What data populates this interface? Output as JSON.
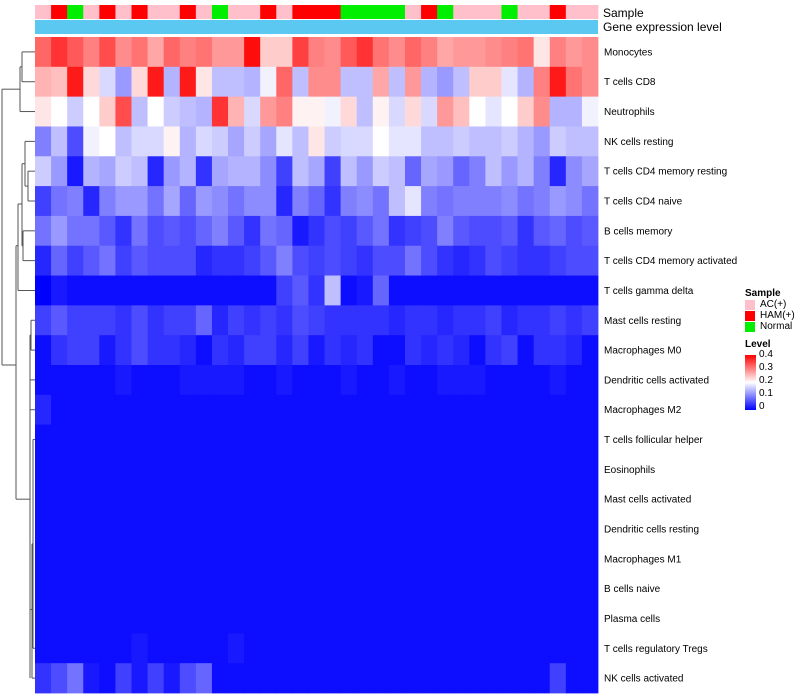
{
  "chart_data": {
    "type": "heatmap",
    "annotation_rows": [
      "Sample",
      "Gene expression level"
    ],
    "sample_groups": [
      {
        "name": "AC(+)",
        "color": "#ffc0cb"
      },
      {
        "name": "HAM(+)",
        "color": "#ff0000"
      },
      {
        "name": "Normal",
        "color": "#00ee00"
      }
    ],
    "sample_annotation": [
      "AC(+)",
      "HAM(+)",
      "Normal",
      "AC(+)",
      "HAM(+)",
      "AC(+)",
      "HAM(+)",
      "AC(+)",
      "AC(+)",
      "HAM(+)",
      "AC(+)",
      "Normal",
      "AC(+)",
      "AC(+)",
      "HAM(+)",
      "AC(+)",
      "HAM(+)",
      "HAM(+)",
      "HAM(+)",
      "Normal",
      "Normal",
      "Normal",
      "Normal",
      "AC(+)",
      "HAM(+)",
      "Normal",
      "AC(+)",
      "AC(+)",
      "AC(+)",
      "Normal",
      "AC(+)",
      "AC(+)",
      "HAM(+)",
      "AC(+)",
      "AC(+)"
    ],
    "expression_level_color": "#5ac8f0",
    "rows": [
      "Monocytes",
      "T cells CD8",
      "Neutrophils",
      "NK cells resting",
      "T cells CD4 memory resting",
      "T cells CD4 naive",
      "B cells memory",
      "T cells CD4 memory activated",
      "T cells gamma delta",
      "Mast cells resting",
      "Macrophages M0",
      "Dendritic cells activated",
      "Macrophages M2",
      "T cells follicular helper",
      "Eosinophils",
      "Mast cells activated",
      "Dendritic cells resting",
      "Macrophages M1",
      "B cells naive",
      "Plasma cells",
      "T cells regulatory  Tregs",
      "NK cells activated"
    ],
    "values": [
      [
        0.32,
        0.36,
        0.33,
        0.3,
        0.34,
        0.29,
        0.31,
        0.27,
        0.32,
        0.3,
        0.31,
        0.28,
        0.28,
        0.39,
        0.24,
        0.24,
        0.35,
        0.3,
        0.29,
        0.33,
        0.36,
        0.31,
        0.29,
        0.32,
        0.3,
        0.27,
        0.28,
        0.28,
        0.29,
        0.3,
        0.31,
        0.22,
        0.3,
        0.28,
        0.29
      ],
      [
        0.26,
        0.25,
        0.38,
        0.23,
        0.17,
        0.12,
        0.23,
        0.38,
        0.14,
        0.38,
        0.22,
        0.15,
        0.15,
        0.14,
        0.19,
        0.32,
        0.15,
        0.29,
        0.29,
        0.15,
        0.15,
        0.27,
        0.15,
        0.28,
        0.14,
        0.12,
        0.15,
        0.24,
        0.24,
        0.18,
        0.14,
        0.3,
        0.38,
        0.31,
        0.29
      ],
      [
        0.22,
        0.2,
        0.16,
        0.2,
        0.24,
        0.34,
        0.15,
        0.2,
        0.16,
        0.15,
        0.14,
        0.36,
        0.26,
        0.17,
        0.28,
        0.3,
        0.21,
        0.21,
        0.19,
        0.23,
        0.15,
        0.21,
        0.17,
        0.23,
        0.17,
        0.28,
        0.25,
        0.2,
        0.18,
        0.2,
        0.24,
        0.29,
        0.14,
        0.14,
        0.19
      ],
      [
        0.1,
        0.15,
        0.06,
        0.19,
        0.2,
        0.15,
        0.17,
        0.17,
        0.21,
        0.14,
        0.17,
        0.16,
        0.13,
        0.16,
        0.13,
        0.18,
        0.15,
        0.22,
        0.16,
        0.17,
        0.17,
        0.2,
        0.18,
        0.18,
        0.15,
        0.15,
        0.16,
        0.15,
        0.15,
        0.16,
        0.14,
        0.12,
        0.16,
        0.15,
        0.15
      ],
      [
        0.16,
        0.12,
        0.02,
        0.14,
        0.13,
        0.16,
        0.15,
        0.03,
        0.12,
        0.14,
        0.04,
        0.13,
        0.14,
        0.14,
        0.11,
        0.05,
        0.15,
        0.13,
        0.05,
        0.15,
        0.12,
        0.16,
        0.15,
        0.08,
        0.13,
        0.12,
        0.08,
        0.1,
        0.15,
        0.12,
        0.14,
        0.1,
        0.03,
        0.11,
        0.13
      ],
      [
        0.05,
        0.09,
        0.1,
        0.03,
        0.1,
        0.12,
        0.12,
        0.09,
        0.13,
        0.08,
        0.12,
        0.11,
        0.09,
        0.11,
        0.11,
        0.03,
        0.1,
        0.08,
        0.04,
        0.1,
        0.11,
        0.09,
        0.15,
        0.18,
        0.1,
        0.09,
        0.1,
        0.1,
        0.1,
        0.11,
        0.09,
        0.1,
        0.12,
        0.11,
        0.09
      ],
      [
        0.09,
        0.12,
        0.09,
        0.09,
        0.07,
        0.04,
        0.09,
        0.06,
        0.07,
        0.06,
        0.08,
        0.1,
        0.07,
        0.04,
        0.09,
        0.08,
        0.02,
        0.04,
        0.06,
        0.05,
        0.07,
        0.09,
        0.04,
        0.05,
        0.06,
        0.1,
        0.07,
        0.06,
        0.06,
        0.07,
        0.04,
        0.07,
        0.08,
        0.06,
        0.07
      ],
      [
        0.03,
        0.08,
        0.05,
        0.07,
        0.09,
        0.05,
        0.07,
        0.06,
        0.06,
        0.06,
        0.03,
        0.04,
        0.04,
        0.05,
        0.07,
        0.1,
        0.06,
        0.05,
        0.06,
        0.05,
        0.04,
        0.06,
        0.06,
        0.09,
        0.06,
        0.04,
        0.03,
        0.04,
        0.06,
        0.05,
        0.04,
        0.04,
        0.05,
        0.06,
        0.06
      ],
      [
        0.0,
        0.02,
        0.01,
        0.01,
        0.01,
        0.01,
        0.01,
        0.01,
        0.01,
        0.01,
        0.01,
        0.01,
        0.01,
        0.01,
        0.01,
        0.05,
        0.07,
        0.04,
        0.15,
        0.01,
        0.02,
        0.08,
        0.01,
        0.01,
        0.01,
        0.01,
        0.01,
        0.01,
        0.01,
        0.01,
        0.01,
        0.01,
        0.01,
        0.01,
        0.01
      ],
      [
        0.05,
        0.07,
        0.05,
        0.05,
        0.05,
        0.04,
        0.06,
        0.04,
        0.05,
        0.05,
        0.08,
        0.03,
        0.05,
        0.04,
        0.05,
        0.04,
        0.06,
        0.05,
        0.04,
        0.04,
        0.04,
        0.04,
        0.03,
        0.04,
        0.04,
        0.03,
        0.04,
        0.04,
        0.05,
        0.03,
        0.04,
        0.04,
        0.05,
        0.04,
        0.05
      ],
      [
        0.01,
        0.04,
        0.05,
        0.05,
        0.02,
        0.04,
        0.06,
        0.04,
        0.04,
        0.03,
        0.01,
        0.04,
        0.03,
        0.05,
        0.05,
        0.03,
        0.05,
        0.02,
        0.04,
        0.03,
        0.04,
        0.01,
        0.01,
        0.04,
        0.03,
        0.04,
        0.03,
        0.01,
        0.04,
        0.05,
        0.01,
        0.04,
        0.04,
        0.03,
        0.01
      ],
      [
        0.01,
        0.01,
        0.01,
        0.01,
        0.01,
        0.02,
        0.01,
        0.01,
        0.01,
        0.02,
        0.02,
        0.02,
        0.02,
        0.01,
        0.01,
        0.02,
        0.01,
        0.01,
        0.01,
        0.02,
        0.01,
        0.01,
        0.02,
        0.01,
        0.01,
        0.02,
        0.02,
        0.02,
        0.01,
        0.01,
        0.01,
        0.01,
        0.02,
        0.01,
        0.01
      ],
      [
        0.03,
        0.01,
        0.01,
        0.01,
        0.01,
        0.01,
        0.01,
        0.01,
        0.01,
        0.01,
        0.01,
        0.01,
        0.01,
        0.01,
        0.01,
        0.01,
        0.01,
        0.01,
        0.01,
        0.01,
        0.01,
        0.01,
        0.01,
        0.01,
        0.01,
        0.01,
        0.01,
        0.01,
        0.01,
        0.01,
        0.01,
        0.01,
        0.01,
        0.01,
        0.01
      ],
      [
        0.01,
        0.01,
        0.01,
        0.01,
        0.01,
        0.01,
        0.01,
        0.01,
        0.01,
        0.01,
        0.01,
        0.01,
        0.01,
        0.01,
        0.01,
        0.01,
        0.01,
        0.01,
        0.01,
        0.01,
        0.01,
        0.01,
        0.01,
        0.01,
        0.01,
        0.01,
        0.01,
        0.01,
        0.01,
        0.01,
        0.01,
        0.01,
        0.01,
        0.01,
        0.01
      ],
      [
        0.01,
        0.01,
        0.01,
        0.01,
        0.01,
        0.01,
        0.01,
        0.01,
        0.01,
        0.01,
        0.01,
        0.01,
        0.01,
        0.01,
        0.01,
        0.01,
        0.01,
        0.01,
        0.01,
        0.01,
        0.01,
        0.01,
        0.01,
        0.01,
        0.01,
        0.01,
        0.01,
        0.01,
        0.01,
        0.01,
        0.01,
        0.01,
        0.01,
        0.01,
        0.01
      ],
      [
        0.01,
        0.01,
        0.01,
        0.01,
        0.01,
        0.01,
        0.01,
        0.01,
        0.01,
        0.01,
        0.01,
        0.01,
        0.01,
        0.01,
        0.01,
        0.01,
        0.01,
        0.01,
        0.01,
        0.01,
        0.01,
        0.01,
        0.01,
        0.01,
        0.01,
        0.01,
        0.01,
        0.01,
        0.01,
        0.01,
        0.01,
        0.01,
        0.01,
        0.01,
        0.01
      ],
      [
        0.01,
        0.01,
        0.01,
        0.01,
        0.01,
        0.01,
        0.01,
        0.01,
        0.01,
        0.01,
        0.01,
        0.01,
        0.01,
        0.01,
        0.01,
        0.01,
        0.01,
        0.01,
        0.01,
        0.01,
        0.01,
        0.01,
        0.01,
        0.01,
        0.01,
        0.01,
        0.01,
        0.01,
        0.01,
        0.01,
        0.01,
        0.01,
        0.01,
        0.01,
        0.01
      ],
      [
        0.01,
        0.01,
        0.01,
        0.01,
        0.01,
        0.01,
        0.01,
        0.01,
        0.01,
        0.01,
        0.01,
        0.01,
        0.01,
        0.01,
        0.01,
        0.01,
        0.01,
        0.01,
        0.01,
        0.01,
        0.01,
        0.01,
        0.01,
        0.01,
        0.01,
        0.01,
        0.01,
        0.01,
        0.01,
        0.01,
        0.01,
        0.01,
        0.01,
        0.01,
        0.01
      ],
      [
        0.01,
        0.01,
        0.01,
        0.01,
        0.01,
        0.01,
        0.01,
        0.01,
        0.01,
        0.01,
        0.01,
        0.01,
        0.01,
        0.01,
        0.01,
        0.01,
        0.01,
        0.01,
        0.01,
        0.01,
        0.01,
        0.01,
        0.01,
        0.01,
        0.01,
        0.01,
        0.01,
        0.01,
        0.01,
        0.01,
        0.01,
        0.01,
        0.01,
        0.01,
        0.01
      ],
      [
        0.01,
        0.01,
        0.01,
        0.01,
        0.01,
        0.01,
        0.01,
        0.01,
        0.01,
        0.01,
        0.01,
        0.01,
        0.01,
        0.01,
        0.01,
        0.01,
        0.01,
        0.01,
        0.01,
        0.01,
        0.01,
        0.01,
        0.01,
        0.01,
        0.01,
        0.01,
        0.01,
        0.01,
        0.01,
        0.01,
        0.01,
        0.01,
        0.01,
        0.01,
        0.01
      ],
      [
        0.01,
        0.01,
        0.01,
        0.01,
        0.01,
        0.01,
        0.02,
        0.01,
        0.01,
        0.01,
        0.01,
        0.01,
        0.02,
        0.01,
        0.01,
        0.01,
        0.01,
        0.01,
        0.01,
        0.01,
        0.01,
        0.01,
        0.01,
        0.01,
        0.01,
        0.01,
        0.01,
        0.01,
        0.01,
        0.01,
        0.01,
        0.01,
        0.01,
        0.01,
        0.01
      ],
      [
        0.04,
        0.06,
        0.09,
        0.02,
        0.01,
        0.05,
        0.02,
        0.05,
        0.02,
        0.06,
        0.08,
        0.01,
        0.01,
        0.01,
        0.01,
        0.01,
        0.01,
        0.01,
        0.01,
        0.01,
        0.01,
        0.01,
        0.01,
        0.01,
        0.01,
        0.01,
        0.01,
        0.01,
        0.01,
        0.01,
        0.01,
        0.01,
        0.05,
        0.01,
        0.01
      ]
    ],
    "color_scale": {
      "title": "Level",
      "min": 0,
      "max": 0.4,
      "low": "#0000ff",
      "mid": "#ffffff",
      "high": "#ff0000",
      "ticks": [
        "0.4",
        "0.3",
        "0.2",
        "0.1",
        "0"
      ]
    },
    "legend": {
      "title": "Sample",
      "position": "right"
    }
  }
}
